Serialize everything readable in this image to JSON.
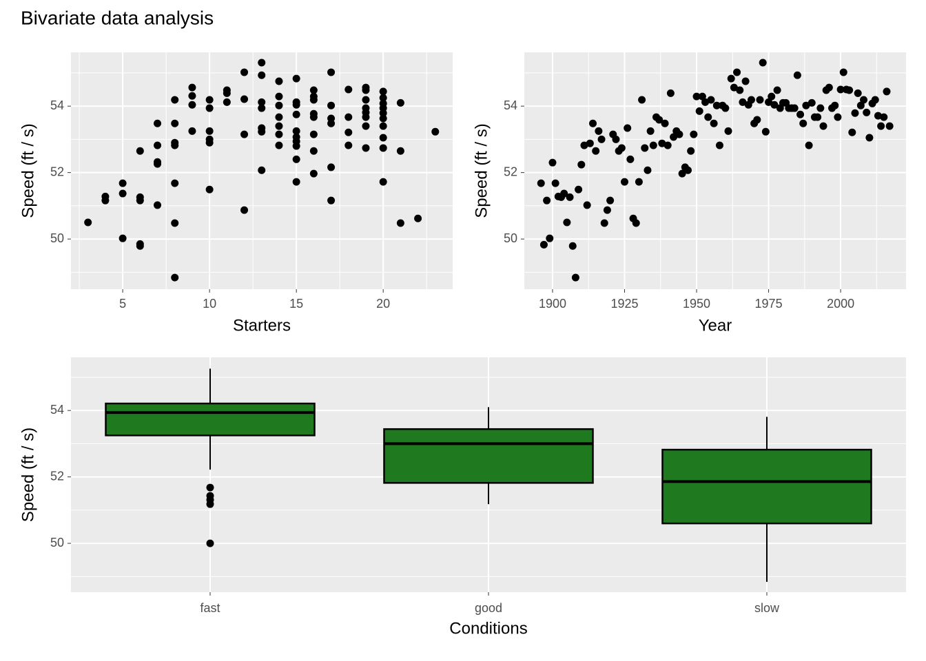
{
  "title": "Bivariate data analysis",
  "chart_data": [
    {
      "type": "scatter",
      "x_label": "Starters",
      "y_label": "Speed (ft / s)",
      "color": "#000000",
      "x": [
        3,
        4,
        4,
        5,
        5,
        5,
        6,
        6,
        6,
        6,
        6,
        7,
        7,
        7,
        7,
        7,
        8,
        8,
        8,
        8,
        8,
        8,
        8,
        9,
        9,
        9,
        9,
        10,
        10,
        10,
        10,
        10,
        10,
        11,
        11,
        11,
        12,
        12,
        12,
        12,
        13,
        13,
        13,
        13,
        13,
        13,
        13,
        14,
        14,
        14,
        14,
        14,
        14,
        14,
        15,
        15,
        15,
        15,
        15,
        15,
        15,
        15,
        15,
        15,
        16,
        16,
        16,
        16,
        16,
        16,
        16,
        16,
        17,
        17,
        17,
        17,
        17,
        17,
        18,
        18,
        18,
        18,
        19,
        19,
        19,
        19,
        19,
        19,
        19,
        19,
        20,
        20,
        20,
        20,
        20,
        20,
        20,
        20,
        20,
        20,
        21,
        21,
        21,
        22,
        23
      ],
      "y": [
        50.5,
        51.28,
        51.16,
        51.68,
        51.37,
        50.02,
        52.65,
        51.26,
        51.16,
        49.85,
        49.79,
        53.48,
        52.82,
        52.32,
        52.26,
        51.02,
        54.19,
        53.48,
        52.9,
        52.82,
        51.68,
        50.48,
        48.84,
        54.56,
        54.31,
        54.04,
        53.25,
        54.19,
        53.94,
        53.25,
        53.0,
        52.9,
        51.49,
        54.48,
        54.39,
        54.12,
        55.02,
        54.21,
        53.15,
        50.87,
        55.31,
        54.93,
        54.12,
        53.94,
        53.34,
        53.23,
        52.07,
        54.75,
        54.29,
        54.02,
        53.67,
        53.4,
        53.15,
        52.82,
        54.83,
        54.12,
        54.04,
        53.75,
        53.25,
        53.07,
        52.94,
        52.8,
        52.4,
        51.72,
        54.48,
        54.29,
        54.19,
        53.77,
        53.67,
        53.15,
        52.65,
        51.97,
        55.02,
        54.02,
        53.63,
        53.48,
        52.16,
        51.16,
        54.5,
        53.67,
        53.21,
        52.82,
        54.56,
        54.48,
        54.19,
        53.94,
        53.81,
        53.67,
        53.4,
        52.74,
        54.44,
        54.25,
        54.08,
        53.94,
        53.79,
        53.63,
        53.4,
        53.05,
        52.74,
        51.72,
        54.1,
        52.65,
        50.48,
        50.62,
        53.23
      ],
      "xlim": [
        2.02,
        24.0
      ],
      "xticks": [
        5,
        10,
        15,
        20
      ],
      "xminor": [
        2.5,
        7.5,
        12.5,
        17.5,
        22.5
      ],
      "ylim": [
        48.49,
        55.62
      ],
      "yticks": [
        50,
        52,
        54
      ],
      "yminor": [
        49,
        51,
        53,
        55
      ],
      "grid": true
    },
    {
      "type": "scatter",
      "x_label": "Year",
      "y_label": "Speed (ft / s)",
      "color": "#000000",
      "x": [
        1896,
        1897,
        1898,
        1899,
        1900,
        1901,
        1902,
        1903,
        1904,
        1905,
        1906,
        1907,
        1908,
        1909,
        1910,
        1911,
        1912,
        1913,
        1914,
        1915,
        1916,
        1917,
        1918,
        1919,
        1920,
        1921,
        1922,
        1923,
        1924,
        1925,
        1926,
        1927,
        1928,
        1929,
        1930,
        1931,
        1932,
        1933,
        1934,
        1935,
        1936,
        1937,
        1938,
        1939,
        1940,
        1941,
        1942,
        1943,
        1944,
        1945,
        1946,
        1947,
        1948,
        1949,
        1950,
        1951,
        1952,
        1953,
        1954,
        1955,
        1956,
        1957,
        1958,
        1959,
        1960,
        1961,
        1962,
        1963,
        1964,
        1965,
        1966,
        1967,
        1968,
        1969,
        1970,
        1971,
        1972,
        1973,
        1974,
        1975,
        1976,
        1977,
        1978,
        1979,
        1980,
        1981,
        1982,
        1983,
        1984,
        1985,
        1986,
        1987,
        1988,
        1989,
        1990,
        1991,
        1992,
        1993,
        1994,
        1995,
        1996,
        1997,
        1998,
        1999,
        2000,
        2001,
        2002,
        2003,
        2004,
        2005,
        2006,
        2007,
        2008,
        2009,
        2010,
        2011,
        2012,
        2013,
        2014,
        2015,
        2016,
        2017
      ],
      "y": [
        51.68,
        49.83,
        51.16,
        50.02,
        52.3,
        51.68,
        51.28,
        51.26,
        51.37,
        50.5,
        51.26,
        49.79,
        48.84,
        51.49,
        52.24,
        52.82,
        51.02,
        52.88,
        53.48,
        52.65,
        53.25,
        53.0,
        50.48,
        50.87,
        51.16,
        53.15,
        53.0,
        52.65,
        52.74,
        51.72,
        53.34,
        52.4,
        50.62,
        50.48,
        51.72,
        54.19,
        52.74,
        52.07,
        53.25,
        52.82,
        53.67,
        53.59,
        52.88,
        53.48,
        52.82,
        54.39,
        53.07,
        53.25,
        53.15,
        51.97,
        52.16,
        52.07,
        52.65,
        53.15,
        54.29,
        53.85,
        54.29,
        54.12,
        53.67,
        54.19,
        53.48,
        54.02,
        52.82,
        54.02,
        53.94,
        53.25,
        54.83,
        54.56,
        55.02,
        54.48,
        54.12,
        54.75,
        54.04,
        54.19,
        53.48,
        53.59,
        54.19,
        55.31,
        53.23,
        54.12,
        54.29,
        54.04,
        54.48,
        53.94,
        54.1,
        54.1,
        53.94,
        53.94,
        53.94,
        54.93,
        53.75,
        53.48,
        54.02,
        52.82,
        54.1,
        53.67,
        53.67,
        53.94,
        53.4,
        54.48,
        54.56,
        53.94,
        54.02,
        53.67,
        54.5,
        55.02,
        54.5,
        54.48,
        53.21,
        53.79,
        54.39,
        54.02,
        54.19,
        53.81,
        53.05,
        54.08,
        54.19,
        53.71,
        53.4,
        53.67,
        54.44,
        53.4
      ],
      "xlim": [
        1890.2,
        2022.7
      ],
      "xticks": [
        1900,
        1925,
        1950,
        1975,
        2000
      ],
      "xminor": [
        1912.5,
        1937.5,
        1962.5,
        1987.5,
        2012.5
      ],
      "ylim": [
        48.49,
        55.62
      ],
      "yticks": [
        50,
        52,
        54
      ],
      "yminor": [
        49,
        51,
        53,
        55
      ],
      "grid": true
    },
    {
      "type": "box",
      "x_label": "Conditions",
      "y_label": "Speed (ft / s)",
      "color": "#1f7a1f",
      "categories": [
        "fast",
        "good",
        "slow"
      ],
      "whisker_low": [
        52.22,
        51.18,
        48.84
      ],
      "q1": [
        53.25,
        51.82,
        50.6
      ],
      "median": [
        53.94,
        53.0,
        51.86
      ],
      "q3": [
        54.21,
        53.44,
        52.82
      ],
      "whisker_high": [
        55.26,
        54.1,
        53.81
      ],
      "outliers": [
        [
          51.68,
          51.43,
          51.31,
          51.18,
          50.0
        ],
        [],
        []
      ],
      "ylim": [
        48.53,
        55.6
      ],
      "yticks": [
        50,
        52,
        54
      ],
      "yminor": [
        49,
        51,
        53,
        55
      ],
      "grid": true
    }
  ]
}
